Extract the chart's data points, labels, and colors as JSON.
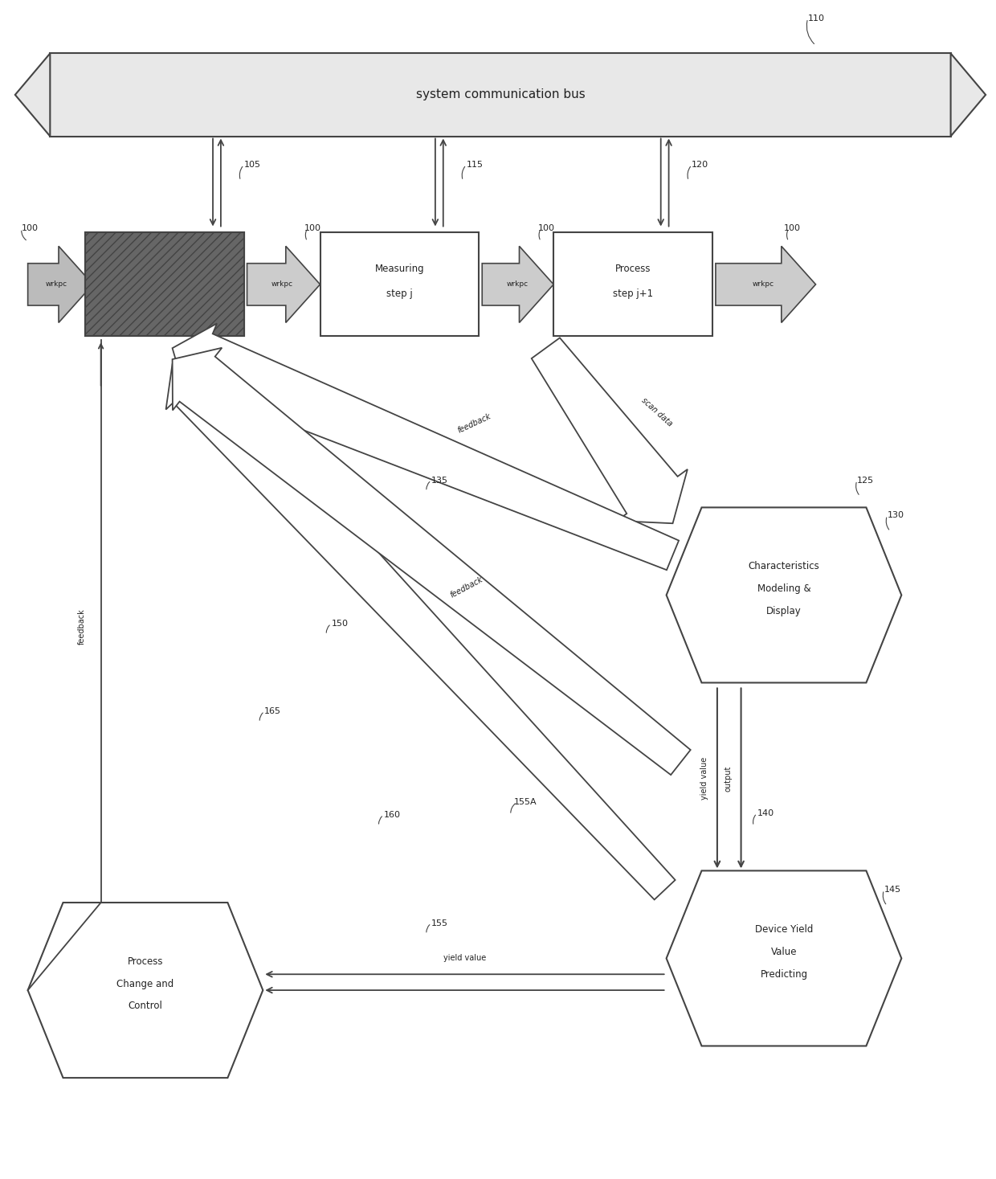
{
  "bg_color": "#ffffff",
  "lc": "#444444",
  "bus_fill": "#e8e8e8",
  "dark_fill": "#777777",
  "white_fill": "#ffffff",
  "arrow_fill": "#cccccc",
  "font": "DejaVu Sans",
  "bus_label": "system communication bus",
  "box2_line1": "Measuring",
  "box2_line2": "step j",
  "box3_line1": "Process",
  "box3_line2": "step j+1",
  "hex1_line1": "Characteristics",
  "hex1_line2": "Modeling &",
  "hex1_line3": "Display",
  "hex2_line1": "Device Yield",
  "hex2_line2": "Value",
  "hex2_line3": "Predicting",
  "hex3_line1": "Process",
  "hex3_line2": "Change and",
  "hex3_line3": "Control"
}
